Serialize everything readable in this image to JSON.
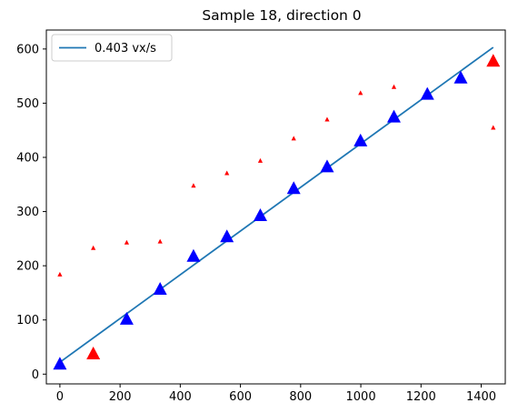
{
  "chart_data": {
    "type": "scatter",
    "title": "Sample 18, direction 0",
    "xlabel": "",
    "ylabel": "",
    "xlim": [
      -45,
      1480
    ],
    "ylim": [
      -18,
      635
    ],
    "xticks": [
      0,
      200,
      400,
      600,
      800,
      1000,
      1200,
      1400
    ],
    "yticks": [
      0,
      100,
      200,
      300,
      400,
      500,
      600
    ],
    "grid": false,
    "legend_position": "top-left",
    "colors": {
      "fit_line": "#1f77b4",
      "inlier": "#0000ff",
      "outlier": "#ff0000",
      "small_points": "#ff0000"
    },
    "series": [
      {
        "name": "0.403 vx/s",
        "kind": "line",
        "x": [
          0,
          1440
        ],
        "y": [
          22,
          603
        ]
      },
      {
        "kind": "large-triangle",
        "x": [
          0,
          222,
          333,
          444,
          555,
          666,
          777,
          888,
          999,
          1110,
          1221,
          1332
        ],
        "y": [
          19,
          102,
          157,
          218,
          254,
          293,
          343,
          383,
          431,
          475,
          517,
          547
        ]
      },
      {
        "kind": "large-triangle",
        "x": [
          111,
          1440
        ],
        "y": [
          38,
          578
        ]
      },
      {
        "kind": "small-triangle",
        "x": [
          0,
          111,
          222,
          333,
          444,
          555,
          666,
          777,
          888,
          999,
          1110,
          1440
        ],
        "y": [
          184,
          233,
          243,
          245,
          348,
          371,
          394,
          435,
          470,
          519,
          530,
          455
        ]
      }
    ]
  }
}
